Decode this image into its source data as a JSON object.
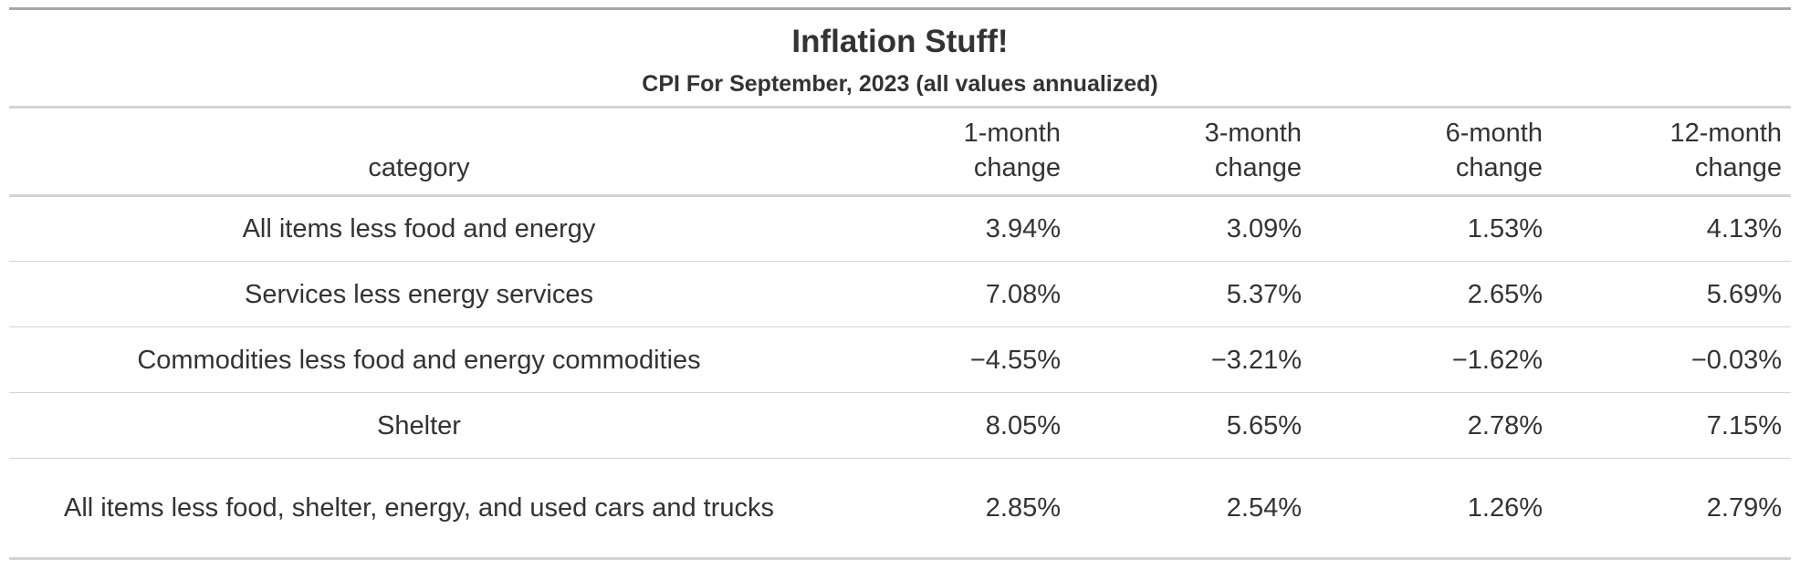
{
  "table": {
    "title": "Inflation Stuff!",
    "subtitle": "CPI For September, 2023 (all values annualized)",
    "columns": {
      "category": "category",
      "m1": "1-month change",
      "m3": "3-month change",
      "m6": "6-month change",
      "m12": "12-month change"
    },
    "rows": [
      {
        "category": "All items less food and energy",
        "m1": "3.94%",
        "m3": "3.09%",
        "m6": "1.53%",
        "m12": "4.13%"
      },
      {
        "category": "Services less energy services",
        "m1": "7.08%",
        "m3": "5.37%",
        "m6": "2.65%",
        "m12": "5.69%"
      },
      {
        "category": "Commodities less food and energy commodities",
        "m1": "−4.55%",
        "m3": "−3.21%",
        "m6": "−1.62%",
        "m12": "−0.03%"
      },
      {
        "category": "Shelter",
        "m1": "8.05%",
        "m3": "5.65%",
        "m6": "2.78%",
        "m12": "7.15%"
      },
      {
        "category": "All items less food, shelter, energy, and used cars and trucks",
        "m1": "2.85%",
        "m3": "2.54%",
        "m6": "1.26%",
        "m12": "2.79%"
      }
    ]
  },
  "chart_data": {
    "type": "table",
    "title": "Inflation Stuff!",
    "subtitle": "CPI For September, 2023 (all values annualized)",
    "columns": [
      "category",
      "1-month change",
      "3-month change",
      "6-month change",
      "12-month change"
    ],
    "rows": [
      [
        "All items less food and energy",
        3.94,
        3.09,
        1.53,
        4.13
      ],
      [
        "Services less energy services",
        7.08,
        5.37,
        2.65,
        5.69
      ],
      [
        "Commodities less food and energy commodities",
        -4.55,
        -3.21,
        -1.62,
        -0.03
      ],
      [
        "Shelter",
        8.05,
        5.65,
        2.78,
        7.15
      ],
      [
        "All items less food, shelter, energy, and used cars and trucks",
        2.85,
        2.54,
        1.26,
        2.79
      ]
    ],
    "unit": "%"
  }
}
